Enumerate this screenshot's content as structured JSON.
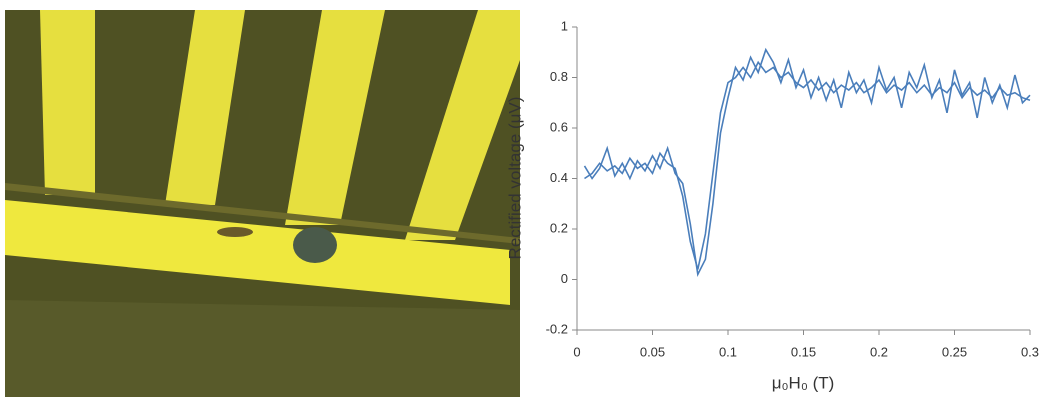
{
  "chart_data": {
    "type": "line",
    "xlabel": "μ₀H₀ (T)",
    "ylabel": "Rectified voltage (μV)",
    "x": [
      0.005,
      0.01,
      0.015,
      0.02,
      0.025,
      0.03,
      0.035,
      0.04,
      0.045,
      0.05,
      0.055,
      0.06,
      0.065,
      0.07,
      0.075,
      0.08,
      0.085,
      0.09,
      0.095,
      0.1,
      0.105,
      0.11,
      0.115,
      0.12,
      0.125,
      0.13,
      0.135,
      0.14,
      0.145,
      0.15,
      0.155,
      0.16,
      0.165,
      0.17,
      0.175,
      0.18,
      0.185,
      0.19,
      0.195,
      0.2,
      0.205,
      0.21,
      0.215,
      0.22,
      0.225,
      0.23,
      0.235,
      0.24,
      0.245,
      0.25,
      0.255,
      0.26,
      0.265,
      0.27,
      0.275,
      0.28,
      0.285,
      0.29,
      0.295,
      0.3
    ],
    "series": [
      {
        "color": "#4a7ebb",
        "values": [
          0.45,
          0.4,
          0.44,
          0.52,
          0.41,
          0.46,
          0.4,
          0.47,
          0.43,
          0.49,
          0.44,
          0.52,
          0.42,
          0.38,
          0.22,
          0.02,
          0.08,
          0.3,
          0.58,
          0.72,
          0.84,
          0.79,
          0.88,
          0.82,
          0.91,
          0.86,
          0.78,
          0.87,
          0.76,
          0.83,
          0.72,
          0.8,
          0.71,
          0.79,
          0.68,
          0.82,
          0.74,
          0.79,
          0.7,
          0.84,
          0.75,
          0.8,
          0.68,
          0.82,
          0.76,
          0.85,
          0.72,
          0.79,
          0.66,
          0.83,
          0.73,
          0.78,
          0.64,
          0.8,
          0.7,
          0.77,
          0.68,
          0.81,
          0.7,
          0.73
        ]
      },
      {
        "color": "#4a7ebb",
        "values": [
          0.4,
          0.42,
          0.46,
          0.43,
          0.45,
          0.42,
          0.48,
          0.44,
          0.46,
          0.42,
          0.5,
          0.46,
          0.44,
          0.33,
          0.15,
          0.04,
          0.18,
          0.42,
          0.66,
          0.78,
          0.8,
          0.84,
          0.8,
          0.86,
          0.82,
          0.84,
          0.8,
          0.82,
          0.78,
          0.76,
          0.79,
          0.75,
          0.78,
          0.74,
          0.77,
          0.75,
          0.78,
          0.74,
          0.76,
          0.79,
          0.74,
          0.77,
          0.75,
          0.78,
          0.74,
          0.77,
          0.73,
          0.76,
          0.74,
          0.78,
          0.72,
          0.76,
          0.73,
          0.75,
          0.72,
          0.76,
          0.73,
          0.74,
          0.72,
          0.71
        ]
      }
    ],
    "xlim": [
      0,
      0.3
    ],
    "xticks": [
      0,
      0.05,
      0.1,
      0.15,
      0.2,
      0.25,
      0.3
    ],
    "ylim": [
      -0.2,
      1
    ],
    "yticks": [
      -0.2,
      0,
      0.2,
      0.4,
      0.6,
      0.8,
      1
    ],
    "grid": false
  }
}
